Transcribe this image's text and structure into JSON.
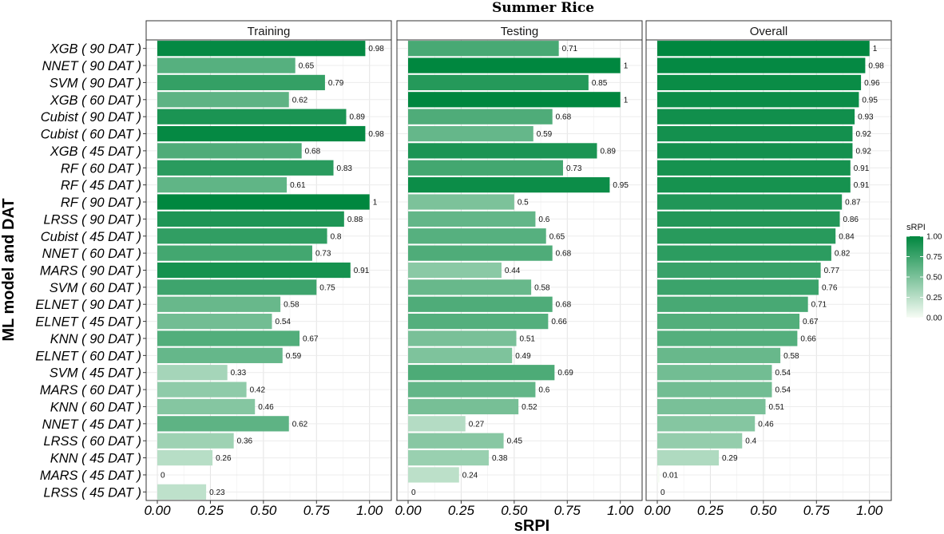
{
  "chart_data": {
    "type": "bar",
    "orientation": "horizontal",
    "title": "Summer Rice",
    "xlabel": "sRPI",
    "ylabel": "ML model and DAT",
    "xlim": [
      0,
      1.05
    ],
    "xticks": [
      "0.00",
      "0.25",
      "0.50",
      "0.75",
      "1.00"
    ],
    "xtick_values": [
      0,
      0.25,
      0.5,
      0.75,
      1.0
    ],
    "categories": [
      "XGB ( 90 DAT )",
      "NNET ( 90 DAT )",
      "SVM  ( 90 DAT )",
      "XGB ( 60 DAT )",
      "Cubist ( 90 DAT )",
      "Cubist ( 60 DAT )",
      "XGB ( 45 DAT )",
      "RF ( 60 DAT )",
      "RF ( 45 DAT )",
      "RF ( 90 DAT )",
      "LRSS ( 90 DAT )",
      "Cubist ( 45 DAT )",
      "NNET ( 60 DAT )",
      "MARS ( 90 DAT )",
      "SVM  ( 60 DAT )",
      "ELNET ( 90 DAT )",
      "ELNET ( 45 DAT )",
      "KNN ( 90 DAT )",
      "ELNET ( 60 DAT )",
      "SVM  ( 45 DAT )",
      "MARS ( 60 DAT )",
      "KNN ( 60 DAT )",
      "NNET ( 45 DAT )",
      "LRSS ( 60 DAT )",
      "KNN ( 45 DAT )",
      "MARS ( 45 DAT )",
      "LRSS ( 45 DAT )"
    ],
    "series": [
      {
        "name": "Training",
        "values": [
          0.98,
          0.65,
          0.79,
          0.62,
          0.89,
          0.98,
          0.68,
          0.83,
          0.61,
          1,
          0.88,
          0.8,
          0.73,
          0.91,
          0.75,
          0.58,
          0.54,
          0.67,
          0.59,
          0.33,
          0.42,
          0.46,
          0.62,
          0.36,
          0.26,
          0,
          0.23
        ],
        "labels": [
          "0.98",
          "0.65",
          "0.79",
          "0.62",
          "0.89",
          "0.98",
          "0.68",
          "0.83",
          "0.61",
          "1",
          "0.88",
          "0.8",
          "0.73",
          "0.91",
          "0.75",
          "0.58",
          "0.54",
          "0.67",
          "0.59",
          "0.33",
          "0.42",
          "0.46",
          "0.62",
          "0.36",
          "0.26",
          "0",
          "0.23"
        ]
      },
      {
        "name": "Testing",
        "values": [
          0.71,
          1,
          0.85,
          1,
          0.68,
          0.59,
          0.89,
          0.73,
          0.95,
          0.5,
          0.6,
          0.65,
          0.68,
          0.44,
          0.58,
          0.68,
          0.66,
          0.51,
          0.49,
          0.69,
          0.6,
          0.52,
          0.27,
          0.45,
          0.38,
          0.24,
          0
        ],
        "labels": [
          "0.71",
          "1",
          "0.85",
          "1",
          "0.68",
          "0.59",
          "0.89",
          "0.73",
          "0.95",
          "0.5",
          "0.6",
          "0.65",
          "0.68",
          "0.44",
          "0.58",
          "0.68",
          "0.66",
          "0.51",
          "0.49",
          "0.69",
          "0.6",
          "0.52",
          "0.27",
          "0.45",
          "0.38",
          "0.24",
          "0"
        ]
      },
      {
        "name": "Overall",
        "values": [
          1,
          0.98,
          0.96,
          0.95,
          0.93,
          0.92,
          0.92,
          0.91,
          0.91,
          0.87,
          0.86,
          0.84,
          0.82,
          0.77,
          0.76,
          0.71,
          0.67,
          0.66,
          0.58,
          0.54,
          0.54,
          0.51,
          0.46,
          0.4,
          0.29,
          0.01,
          0
        ],
        "labels": [
          "1",
          "0.98",
          "0.96",
          "0.95",
          "0.93",
          "0.92",
          "0.92",
          "0.91",
          "0.91",
          "0.87",
          "0.86",
          "0.84",
          "0.82",
          "0.77",
          "0.76",
          "0.71",
          "0.67",
          "0.66",
          "0.58",
          "0.54",
          "0.54",
          "0.51",
          "0.46",
          "0.4",
          "0.29",
          "0.01",
          "0"
        ]
      }
    ],
    "legend": {
      "title": "sRPI",
      "ticks": [
        "1.00",
        "0.75",
        "0.50",
        "0.25",
        "0.00"
      ],
      "tick_values": [
        1.0,
        0.75,
        0.5,
        0.25,
        0.0
      ],
      "position": "right",
      "color_low": "#f7fcf5",
      "color_high": "#00873f"
    },
    "grid": true
  }
}
